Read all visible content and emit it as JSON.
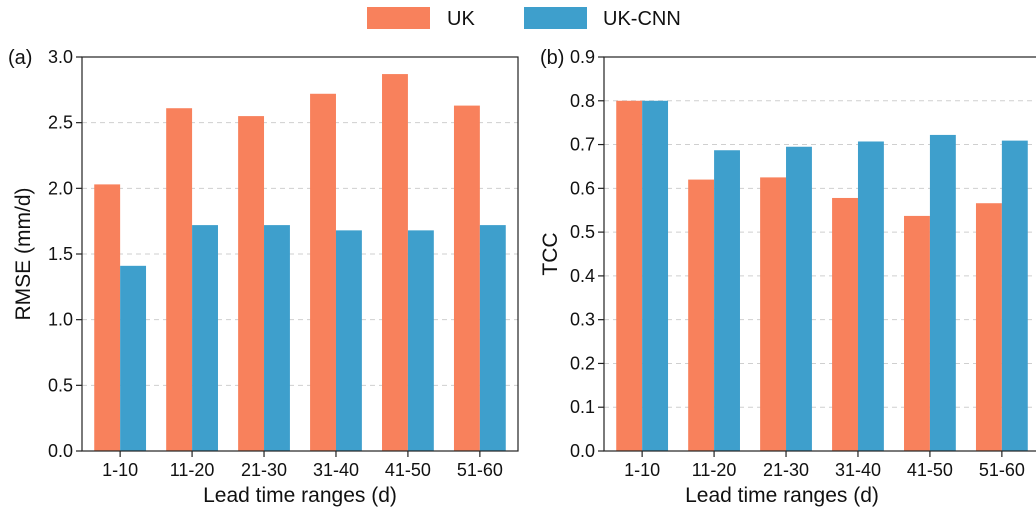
{
  "legend": {
    "position": "top-center",
    "items": [
      {
        "label": "UK",
        "color": "#F8815C"
      },
      {
        "label": "UK-CNN",
        "color": "#3E9FCC"
      }
    ]
  },
  "chart_data": [
    {
      "type": "bar",
      "panel_label": "(a)",
      "title": "",
      "xlabel": "Lead time ranges (d)",
      "ylabel": "RMSE (mm/d)",
      "categories": [
        "1-10",
        "11-20",
        "21-30",
        "31-40",
        "41-50",
        "51-60"
      ],
      "ylim": [
        0.0,
        3.0
      ],
      "yticks": [
        0.0,
        0.5,
        1.0,
        1.5,
        2.0,
        2.5,
        3.0
      ],
      "ytick_labels": [
        "0.0",
        "0.5",
        "1.0",
        "1.5",
        "2.0",
        "2.5",
        "3.0"
      ],
      "grid": "horizontal dashed",
      "series": [
        {
          "name": "UK",
          "values": [
            2.03,
            2.61,
            2.55,
            2.72,
            2.87,
            2.63
          ]
        },
        {
          "name": "UK-CNN",
          "values": [
            1.41,
            1.72,
            1.72,
            1.68,
            1.68,
            1.72
          ]
        }
      ]
    },
    {
      "type": "bar",
      "panel_label": "(b)",
      "title": "",
      "xlabel": "Lead time ranges (d)",
      "ylabel": "TCC",
      "categories": [
        "1-10",
        "11-20",
        "21-30",
        "31-40",
        "41-50",
        "51-60"
      ],
      "ylim": [
        0.0,
        0.9
      ],
      "yticks": [
        0.0,
        0.1,
        0.2,
        0.3,
        0.4,
        0.5,
        0.6,
        0.7,
        0.8,
        0.9
      ],
      "ytick_labels": [
        "0.0",
        "0.1",
        "0.2",
        "0.3",
        "0.4",
        "0.5",
        "0.6",
        "0.7",
        "0.8",
        "0.9"
      ],
      "grid": "horizontal dashed",
      "series": [
        {
          "name": "UK",
          "values": [
            0.8,
            0.62,
            0.625,
            0.578,
            0.537,
            0.566
          ]
        },
        {
          "name": "UK-CNN",
          "values": [
            0.8,
            0.687,
            0.695,
            0.707,
            0.722,
            0.709
          ]
        }
      ]
    }
  ]
}
